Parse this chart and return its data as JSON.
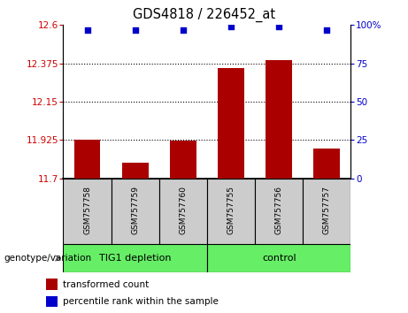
{
  "title": "GDS4818 / 226452_at",
  "samples": [
    "GSM757758",
    "GSM757759",
    "GSM757760",
    "GSM757755",
    "GSM757756",
    "GSM757757"
  ],
  "bar_values": [
    11.925,
    11.79,
    11.92,
    12.345,
    12.395,
    11.875
  ],
  "bar_bottom": 11.7,
  "percentile_values": [
    97,
    97,
    97,
    99,
    99,
    97
  ],
  "bar_color": "#aa0000",
  "dot_color": "#0000cc",
  "ylim_left": [
    11.7,
    12.6
  ],
  "ylim_right": [
    0,
    100
  ],
  "yticks_left": [
    11.7,
    11.925,
    12.15,
    12.375,
    12.6
  ],
  "ytick_labels_left": [
    "11.7",
    "11.925",
    "12.15",
    "12.375",
    "12.6"
  ],
  "yticks_right": [
    0,
    25,
    50,
    75,
    100
  ],
  "ytick_labels_right": [
    "0",
    "25",
    "50",
    "75",
    "100%"
  ],
  "hlines": [
    11.925,
    12.15,
    12.375
  ],
  "group1_label": "TIG1 depletion",
  "group2_label": "control",
  "group_color": "#66ee66",
  "genotype_label": "genotype/variation",
  "legend_bar_label": "transformed count",
  "legend_dot_label": "percentile rank within the sample",
  "bar_width": 0.55,
  "sample_box_color": "#cccccc",
  "tick_label_color_left": "#cc0000",
  "tick_label_color_right": "#0000cc"
}
